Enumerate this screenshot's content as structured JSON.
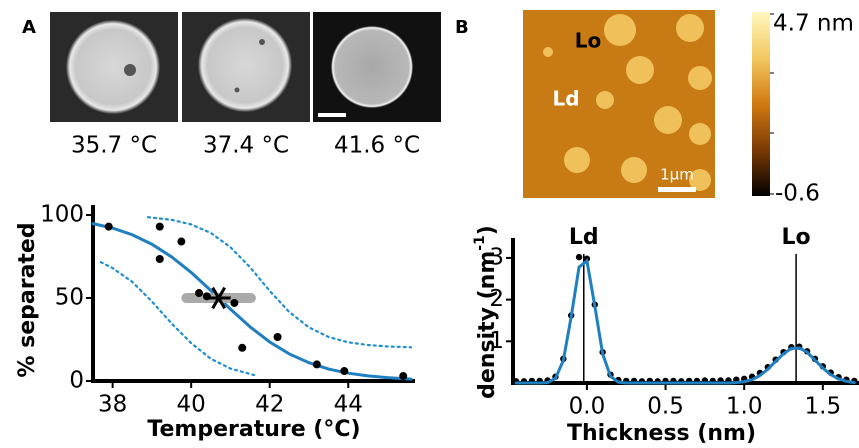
{
  "panel_a": {
    "label": "A",
    "captions": [
      "35.7 °C",
      "37.4 °C",
      "41.6 °C"
    ]
  },
  "panel_b": {
    "label": "B",
    "image_labels": [
      "Lo",
      "Ld"
    ],
    "scale_bar": "1μm",
    "colorbar": {
      "max_label": "4.7 nm",
      "min_label": "-0.6"
    }
  },
  "chart_data": [
    {
      "type": "scatter",
      "xlabel": "Temperature (°C)",
      "ylabel": "% separated",
      "xlim": [
        37.5,
        45.7
      ],
      "ylim": [
        0,
        100
      ],
      "xticks": [
        38,
        40,
        42,
        44
      ],
      "yticks": [
        0,
        50,
        100
      ],
      "series": [
        {
          "style": "line",
          "color": "#1f7fc1",
          "x": [
            37.5,
            38,
            38.5,
            39,
            39.5,
            40,
            40.5,
            41,
            41.5,
            42,
            42.5,
            43,
            43.5,
            44,
            44.5,
            45,
            45.6
          ],
          "values": [
            94.8,
            92.1,
            88.1,
            82.4,
            74.8,
            65.4,
            54.5,
            43.3,
            32.6,
            23.5,
            16.3,
            11.0,
            7.2,
            4.7,
            3.1,
            2.0,
            1.1
          ]
        },
        {
          "style": "dotted",
          "color": "#1f8fd1",
          "x": [
            38.9,
            39.5,
            40,
            40.5,
            41,
            41.5,
            42,
            42.5,
            43,
            43.5,
            44,
            44.5,
            45,
            45.6
          ],
          "values": [
            98.7,
            97.1,
            94.3,
            89.2,
            80.6,
            68.5,
            54.3,
            41.5,
            32.3,
            26.5,
            23.3,
            21.7,
            20.8,
            20.3
          ]
        },
        {
          "style": "dotted",
          "color": "#1f8fd1",
          "x": [
            37.7,
            38,
            38.5,
            39,
            39.5,
            40,
            40.5,
            41,
            41.6
          ],
          "values": [
            71.6,
            68,
            59.7,
            47.9,
            34.7,
            22.8,
            13.4,
            7.5,
            3.6
          ]
        },
        {
          "style": "markers",
          "color": "#000000",
          "x": [
            37.9,
            39.2,
            39.2,
            39.75,
            40.2,
            40.4,
            41.1,
            41.3,
            42.2,
            43.2,
            43.9,
            45.4
          ],
          "values": [
            93,
            93,
            73.5,
            84,
            53,
            51,
            47,
            20,
            26.5,
            10,
            6,
            3
          ]
        },
        {
          "style": "star",
          "color": "#000000",
          "x": [
            40.7
          ],
          "values": [
            50
          ],
          "xerr": [
            0.95
          ]
        }
      ]
    },
    {
      "type": "line",
      "xlabel": "Thickness (nm)",
      "ylabel": "density (nm",
      "ylabel_sup": "-1",
      "ylabel_end": ")",
      "xlim": [
        -0.47,
        1.73
      ],
      "ylim": [
        0,
        3.43
      ],
      "xticks": [
        {
          "value": 0,
          "label": "0.0"
        },
        0.5,
        {
          "value": 1,
          "label": "1.0"
        },
        1.5
      ],
      "yticks": [
        1,
        2,
        3
      ],
      "annotations": [
        {
          "text": "Ld",
          "x": -0.02
        },
        {
          "text": "Lo",
          "x": 1.33
        }
      ],
      "series": [
        {
          "style": "markers",
          "color": "#000000",
          "x": [
            -0.45,
            -0.4,
            -0.35,
            -0.3,
            -0.25,
            -0.2,
            -0.15,
            -0.1,
            -0.05,
            0,
            0.05,
            0.1,
            0.15,
            0.2,
            0.25,
            0.3,
            0.35,
            0.4,
            0.45,
            0.5,
            0.55,
            0.6,
            0.65,
            0.7,
            0.75,
            0.8,
            0.85,
            0.9,
            0.95,
            1,
            1.05,
            1.1,
            1.15,
            1.2,
            1.25,
            1.3,
            1.35,
            1.4,
            1.45,
            1.5,
            1.55,
            1.6,
            1.65,
            1.7
          ],
          "values": [
            0.04,
            0.04,
            0.05,
            0.05,
            0.06,
            0.15,
            0.58,
            1.62,
            3.02,
            2.98,
            1.88,
            0.74,
            0.2,
            0.07,
            0.05,
            0.05,
            0.04,
            0.05,
            0.04,
            0.05,
            0.05,
            0.04,
            0.05,
            0.05,
            0.06,
            0.05,
            0.06,
            0.06,
            0.08,
            0.1,
            0.15,
            0.24,
            0.38,
            0.56,
            0.74,
            0.86,
            0.87,
            0.76,
            0.58,
            0.4,
            0.25,
            0.14,
            0.08,
            0.05
          ]
        },
        {
          "style": "line",
          "color": "#1f7fc1",
          "x": [
            -0.45,
            -0.4,
            -0.35,
            -0.3,
            -0.25,
            -0.2,
            -0.15,
            -0.1,
            -0.05,
            0,
            0.05,
            0.1,
            0.15,
            0.2,
            0.25,
            0.3,
            0.35,
            0.4,
            0.45,
            0.5,
            0.55,
            0.6,
            0.65,
            0.7,
            0.75,
            0.8,
            0.85,
            0.9,
            0.95,
            1,
            1.05,
            1.1,
            1.15,
            1.2,
            1.25,
            1.3,
            1.35,
            1.4,
            1.45,
            1.5,
            1.55,
            1.6,
            1.65,
            1.7
          ],
          "values": [
            0,
            0,
            0,
            0,
            0.01,
            0.11,
            0.54,
            1.59,
            2.78,
            2.93,
            1.85,
            0.7,
            0.16,
            0.02,
            0,
            0,
            0,
            0,
            0,
            0,
            0,
            0,
            0,
            0,
            0,
            0,
            0,
            0,
            0.01,
            0.03,
            0.08,
            0.18,
            0.33,
            0.52,
            0.7,
            0.83,
            0.84,
            0.74,
            0.55,
            0.36,
            0.2,
            0.1,
            0.04,
            0.01
          ]
        }
      ]
    }
  ]
}
